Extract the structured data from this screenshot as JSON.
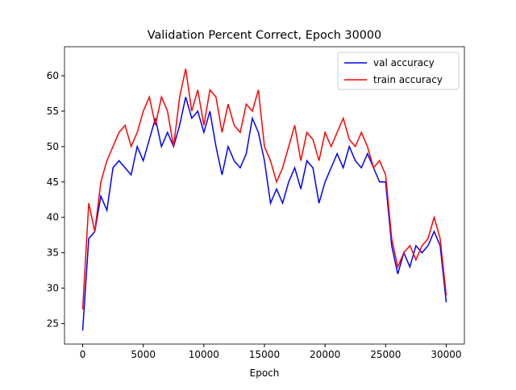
{
  "chart_data": {
    "type": "line",
    "title": "Validation Percent Correct, Epoch 30000",
    "x_label": "Epoch",
    "x": [
      0,
      500,
      1000,
      1500,
      2000,
      2500,
      3000,
      3500,
      4000,
      4500,
      5000,
      5500,
      6000,
      6500,
      7000,
      7500,
      8000,
      8500,
      9000,
      9500,
      10000,
      10500,
      11000,
      11500,
      12000,
      12500,
      13000,
      13500,
      14000,
      14500,
      15000,
      15500,
      16000,
      16500,
      17000,
      17500,
      18000,
      18500,
      19000,
      19500,
      20000,
      20500,
      21000,
      21500,
      22000,
      22500,
      23000,
      23500,
      24000,
      24500,
      25000,
      25500,
      26000,
      26500,
      27000,
      27500,
      28000,
      28500,
      29000,
      29500,
      30000
    ],
    "series": [
      {
        "name": "val accuracy",
        "color": "#0000ff",
        "values": [
          24,
          37,
          38,
          43,
          41,
          47,
          48,
          47,
          46,
          50,
          48,
          51,
          54,
          50,
          52,
          50,
          53,
          57,
          54,
          55,
          52,
          55,
          50,
          46,
          50,
          48,
          47,
          49,
          54,
          52,
          48,
          42,
          44,
          42,
          45,
          47,
          44,
          48,
          47,
          42,
          45,
          47,
          49,
          47,
          50,
          48,
          47,
          49,
          47,
          45,
          45,
          36,
          32,
          35,
          33,
          36,
          35,
          36,
          38,
          36,
          28
        ]
      },
      {
        "name": "train accuracy",
        "color": "#ff0000",
        "values": [
          27,
          42,
          38,
          45,
          48,
          50,
          52,
          53,
          50,
          52,
          55,
          57,
          53,
          57,
          55,
          50,
          57,
          61,
          55,
          58,
          53,
          58,
          57,
          52,
          56,
          53,
          52,
          56,
          55,
          58,
          50,
          48,
          45,
          47,
          50,
          53,
          48,
          52,
          51,
          48,
          52,
          50,
          52,
          54,
          51,
          50,
          52,
          50,
          47,
          48,
          46,
          37,
          33,
          35,
          36,
          34,
          36,
          37,
          40,
          37,
          29
        ]
      }
    ],
    "xlim": [
      -1500,
      31500
    ],
    "ylim": [
      22.1,
      64.1
    ],
    "xticks": [
      0,
      5000,
      10000,
      15000,
      20000,
      25000,
      30000
    ],
    "yticks": [
      25,
      30,
      35,
      40,
      45,
      50,
      55,
      60
    ],
    "legend": "upper right"
  }
}
